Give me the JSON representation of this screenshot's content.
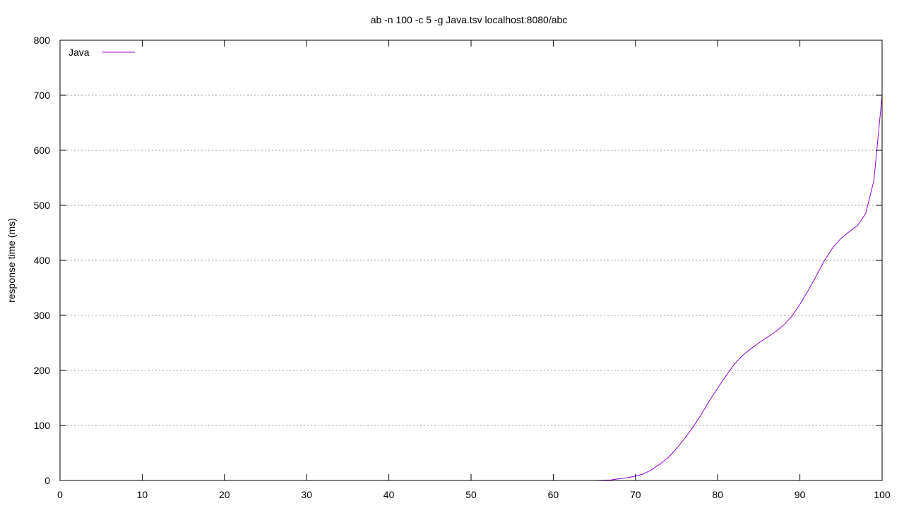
{
  "chart_data": {
    "type": "line",
    "title": "ab -n 100 -c 5 -g Java.tsv localhost:8080/abc",
    "xlabel": "",
    "ylabel": "response time (ms)",
    "xlim": [
      0,
      100
    ],
    "ylim": [
      0,
      800
    ],
    "x_ticks": [
      0,
      10,
      20,
      30,
      40,
      50,
      60,
      70,
      80,
      90,
      100
    ],
    "y_ticks": [
      0,
      100,
      200,
      300,
      400,
      500,
      600,
      700,
      800
    ],
    "grid": "horizontal dotted",
    "legend_position": "top-left",
    "series": [
      {
        "name": "Java",
        "color": "#9400d3",
        "x": [
          0,
          65,
          66,
          67,
          68,
          69,
          70,
          71,
          72,
          73,
          74,
          75,
          76,
          77,
          78,
          79,
          80,
          81,
          82,
          83,
          84,
          85,
          86,
          87,
          88,
          89,
          90,
          91,
          92,
          93,
          94,
          95,
          96,
          97,
          98,
          99,
          100
        ],
        "values": [
          0,
          0,
          0.5,
          1,
          3,
          5,
          8,
          12,
          20,
          30,
          42,
          58,
          77,
          97,
          120,
          145,
          168,
          190,
          211,
          227,
          239,
          250,
          260,
          270,
          282,
          298,
          320,
          345,
          372,
          400,
          423,
          440,
          452,
          463,
          485,
          545,
          700
        ]
      }
    ]
  }
}
